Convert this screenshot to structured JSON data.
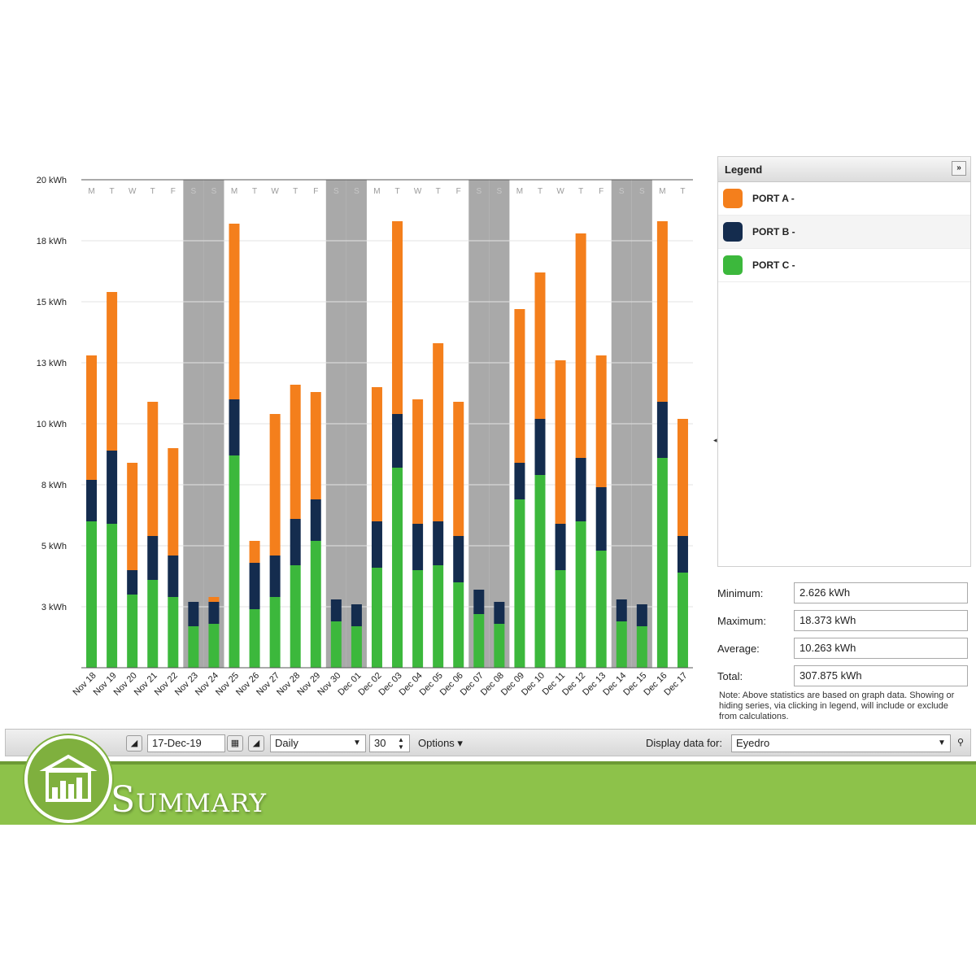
{
  "chart_data": {
    "type": "bar",
    "stacked": true,
    "ylim": [
      0,
      20
    ],
    "yticks": [
      {
        "v": 20,
        "label": "20 kWh"
      },
      {
        "v": 17.5,
        "label": "18 kWh"
      },
      {
        "v": 15,
        "label": "15 kWh"
      },
      {
        "v": 12.5,
        "label": "13 kWh"
      },
      {
        "v": 10,
        "label": "10 kWh"
      },
      {
        "v": 7.5,
        "label": "8 kWh"
      },
      {
        "v": 5,
        "label": "5 kWh"
      },
      {
        "v": 2.5,
        "label": "3 kWh"
      }
    ],
    "grid": true,
    "categories": [
      "Nov 18",
      "Nov 19",
      "Nov 20",
      "Nov 21",
      "Nov 22",
      "Nov 23",
      "Nov 24",
      "Nov 25",
      "Nov 26",
      "Nov 27",
      "Nov 28",
      "Nov 29",
      "Nov 30",
      "Dec 01",
      "Dec 02",
      "Dec 03",
      "Dec 04",
      "Dec 05",
      "Dec 06",
      "Dec 07",
      "Dec 08",
      "Dec 09",
      "Dec 10",
      "Dec 11",
      "Dec 12",
      "Dec 13",
      "Dec 14",
      "Dec 15",
      "Dec 16",
      "Dec 17"
    ],
    "weekdays": [
      "M",
      "T",
      "W",
      "T",
      "F",
      "S",
      "S",
      "M",
      "T",
      "W",
      "T",
      "F",
      "S",
      "S",
      "M",
      "T",
      "W",
      "T",
      "F",
      "S",
      "S",
      "M",
      "T",
      "W",
      "T",
      "F",
      "S",
      "S",
      "M",
      "T"
    ],
    "weekend_shaded": [
      false,
      false,
      false,
      false,
      false,
      true,
      true,
      false,
      false,
      false,
      false,
      false,
      true,
      true,
      false,
      false,
      false,
      false,
      false,
      true,
      true,
      false,
      false,
      false,
      false,
      false,
      true,
      true,
      false,
      false
    ],
    "series": [
      {
        "name": "PORT C -",
        "color": "#3cb83c",
        "values": [
          6.0,
          5.9,
          3.0,
          3.6,
          2.9,
          1.7,
          1.8,
          8.7,
          2.4,
          2.9,
          4.2,
          5.2,
          1.9,
          1.7,
          4.1,
          8.2,
          4.0,
          4.2,
          3.5,
          2.2,
          1.8,
          6.9,
          7.9,
          4.0,
          6.0,
          4.8,
          1.9,
          1.7,
          8.6,
          3.9
        ]
      },
      {
        "name": "PORT B -",
        "color": "#142c4e",
        "values": [
          1.7,
          3.0,
          1.0,
          1.8,
          1.7,
          1.0,
          0.9,
          2.3,
          1.9,
          1.7,
          1.9,
          1.7,
          0.9,
          0.9,
          1.9,
          2.2,
          1.9,
          1.8,
          1.9,
          1.0,
          0.9,
          1.5,
          2.3,
          1.9,
          2.6,
          2.6,
          0.9,
          0.9,
          2.3,
          1.5
        ]
      },
      {
        "name": "PORT A -",
        "color": "#f47f1c",
        "values": [
          5.1,
          6.5,
          4.4,
          5.5,
          4.4,
          0,
          0.2,
          7.2,
          0.9,
          5.8,
          5.5,
          4.4,
          0,
          0,
          5.5,
          7.9,
          5.1,
          7.3,
          5.5,
          0,
          0,
          6.3,
          6.0,
          6.7,
          9.2,
          5.4,
          0,
          0,
          7.4,
          4.8
        ]
      }
    ]
  },
  "legend": {
    "title": "Legend",
    "collapse_label": "»",
    "items": [
      {
        "label": "PORT A -",
        "color": "#f47f1c"
      },
      {
        "label": "PORT B -",
        "color": "#142c4e"
      },
      {
        "label": "PORT C -",
        "color": "#3cb83c"
      }
    ]
  },
  "stats": {
    "minimum_label": "Minimum:",
    "minimum_value": "2.626 kWh",
    "maximum_label": "Maximum:",
    "maximum_value": "18.373 kWh",
    "average_label": "Average:",
    "average_value": "10.263 kWh",
    "total_label": "Total:",
    "total_value": "307.875 kWh",
    "note": "Note: Above statistics are based on graph data. Showing or hiding series, via clicking in legend, will include or exclude from calculations."
  },
  "toolbar": {
    "date_value": "17-Dec-19",
    "period_value": "Daily",
    "count_value": "30",
    "options_label": "Options ▾",
    "display_label": "Display data for:",
    "display_value": "Eyedro"
  },
  "banner": {
    "title": "Summary"
  }
}
